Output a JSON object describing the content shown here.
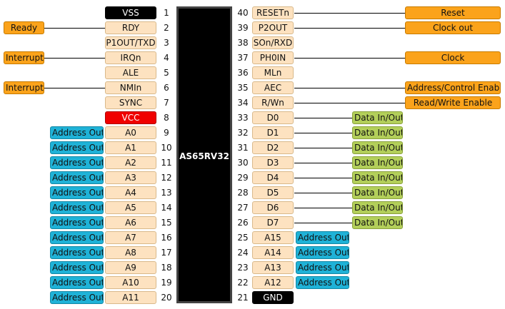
{
  "chip": {
    "name": "AS65RV32"
  },
  "colors": {
    "pin_default": "#fde2c0",
    "pin_power": "#f00000",
    "pin_ground": "#000000",
    "func_orange": "#fba31b",
    "func_blue": "#1fb2d7",
    "func_green": "#b3cf5a",
    "chip_fill": "#000000",
    "chip_border": "#444444"
  },
  "left_pins": [
    {
      "num": "1",
      "name": "VSS",
      "kind": "ground",
      "func": ""
    },
    {
      "num": "2",
      "name": "RDY",
      "kind": "normal",
      "func": "Ready",
      "func_color": "orange"
    },
    {
      "num": "3",
      "name": "P1OUT/TXD",
      "kind": "normal",
      "func": ""
    },
    {
      "num": "4",
      "name": "IRQn",
      "kind": "normal",
      "func": "Interrupt",
      "func_color": "orange"
    },
    {
      "num": "5",
      "name": "ALE",
      "kind": "normal",
      "func": ""
    },
    {
      "num": "6",
      "name": "NMIn",
      "kind": "normal",
      "func": "Interrupt",
      "func_color": "orange"
    },
    {
      "num": "7",
      "name": "SYNC",
      "kind": "normal",
      "func": ""
    },
    {
      "num": "8",
      "name": "VCC",
      "kind": "power",
      "func": ""
    },
    {
      "num": "9",
      "name": "A0",
      "kind": "normal",
      "func": "Address Out",
      "func_color": "blue"
    },
    {
      "num": "10",
      "name": "A1",
      "kind": "normal",
      "func": "Address Out",
      "func_color": "blue"
    },
    {
      "num": "11",
      "name": "A2",
      "kind": "normal",
      "func": "Address Out",
      "func_color": "blue"
    },
    {
      "num": "12",
      "name": "A3",
      "kind": "normal",
      "func": "Address Out",
      "func_color": "blue"
    },
    {
      "num": "13",
      "name": "A4",
      "kind": "normal",
      "func": "Address Out",
      "func_color": "blue"
    },
    {
      "num": "14",
      "name": "A5",
      "kind": "normal",
      "func": "Address Out",
      "func_color": "blue"
    },
    {
      "num": "15",
      "name": "A6",
      "kind": "normal",
      "func": "Address Out",
      "func_color": "blue"
    },
    {
      "num": "16",
      "name": "A7",
      "kind": "normal",
      "func": "Address Out",
      "func_color": "blue"
    },
    {
      "num": "17",
      "name": "A8",
      "kind": "normal",
      "func": "Address Out",
      "func_color": "blue"
    },
    {
      "num": "18",
      "name": "A9",
      "kind": "normal",
      "func": "Address Out",
      "func_color": "blue"
    },
    {
      "num": "19",
      "name": "A10",
      "kind": "normal",
      "func": "Address Out",
      "func_color": "blue"
    },
    {
      "num": "20",
      "name": "A11",
      "kind": "normal",
      "func": "Address Out",
      "func_color": "blue"
    }
  ],
  "right_pins": [
    {
      "num": "40",
      "name": "RESETn",
      "kind": "normal",
      "func": "Reset",
      "func_color": "orange",
      "func_style": "far"
    },
    {
      "num": "39",
      "name": "P2OUT",
      "kind": "normal",
      "func": "Clock out",
      "func_color": "orange",
      "func_style": "far"
    },
    {
      "num": "38",
      "name": "SOn/RXD",
      "kind": "normal",
      "func": ""
    },
    {
      "num": "37",
      "name": "PH0IN",
      "kind": "normal",
      "func": "Clock",
      "func_color": "orange",
      "func_style": "far"
    },
    {
      "num": "36",
      "name": "MLn",
      "kind": "normal",
      "func": ""
    },
    {
      "num": "35",
      "name": "AEC",
      "kind": "normal",
      "func": "Address/Control Enable",
      "func_color": "orange",
      "func_style": "far"
    },
    {
      "num": "34",
      "name": "R/Wn",
      "kind": "normal",
      "func": "Read/Write Enable",
      "func_color": "orange",
      "func_style": "far"
    },
    {
      "num": "33",
      "name": "D0",
      "kind": "normal",
      "func": "Data In/Out",
      "func_color": "green",
      "func_style": "mid"
    },
    {
      "num": "32",
      "name": "D1",
      "kind": "normal",
      "func": "Data In/Out",
      "func_color": "green",
      "func_style": "mid"
    },
    {
      "num": "31",
      "name": "D2",
      "kind": "normal",
      "func": "Data In/Out",
      "func_color": "green",
      "func_style": "mid"
    },
    {
      "num": "30",
      "name": "D3",
      "kind": "normal",
      "func": "Data In/Out",
      "func_color": "green",
      "func_style": "mid"
    },
    {
      "num": "29",
      "name": "D4",
      "kind": "normal",
      "func": "Data In/Out",
      "func_color": "green",
      "func_style": "mid"
    },
    {
      "num": "28",
      "name": "D5",
      "kind": "normal",
      "func": "Data In/Out",
      "func_color": "green",
      "func_style": "mid"
    },
    {
      "num": "27",
      "name": "D6",
      "kind": "normal",
      "func": "Data In/Out",
      "func_color": "green",
      "func_style": "mid"
    },
    {
      "num": "26",
      "name": "D7",
      "kind": "normal",
      "func": "Data In/Out",
      "func_color": "green",
      "func_style": "mid"
    },
    {
      "num": "25",
      "name": "A15",
      "kind": "normal",
      "func": "Address Out",
      "func_color": "blue",
      "func_style": "near"
    },
    {
      "num": "24",
      "name": "A14",
      "kind": "normal",
      "func": "Address Out",
      "func_color": "blue",
      "func_style": "near"
    },
    {
      "num": "23",
      "name": "A13",
      "kind": "normal",
      "func": "Address Out",
      "func_color": "blue",
      "func_style": "near"
    },
    {
      "num": "22",
      "name": "A12",
      "kind": "normal",
      "func": "Address Out",
      "func_color": "blue",
      "func_style": "near"
    },
    {
      "num": "21",
      "name": "GND",
      "kind": "ground",
      "func": ""
    }
  ]
}
